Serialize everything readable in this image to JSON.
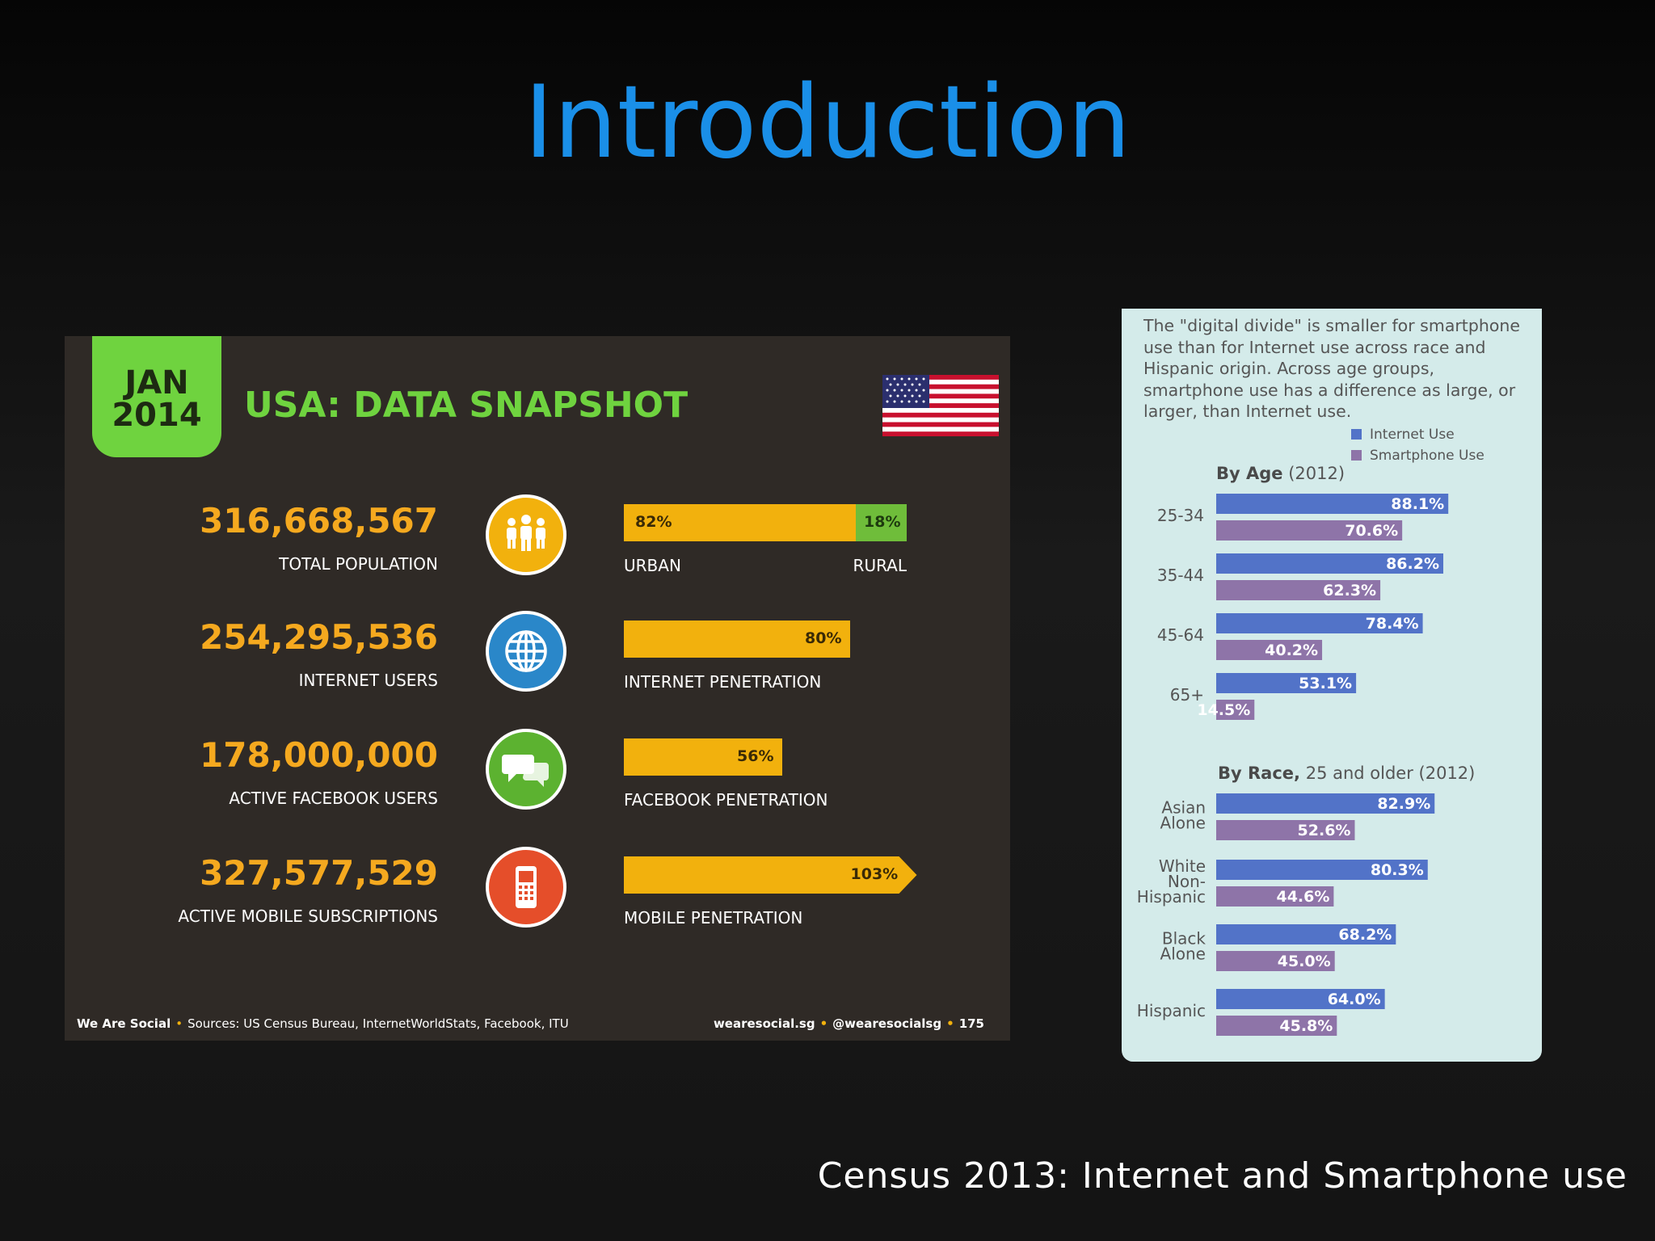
{
  "slide": {
    "title": "Introduction",
    "caption": "Census 2013: Internet and Smartphone use"
  },
  "snapshot": {
    "badge_month": "JAN",
    "badge_year": "2014",
    "title": "USA: DATA SNAPSHOT",
    "colors": {
      "green": "#6fd33f",
      "orange": "#f5a91f",
      "bar": "#f2b10d",
      "panel": "#2f2a26"
    },
    "rows": [
      {
        "value": "316,668,567",
        "label": "TOTAL POPULATION",
        "icon": "people-icon",
        "icon_color": "#f2b10d",
        "bar": {
          "pct": 82,
          "pct_label": "82%",
          "second_pct": 18,
          "second_label": "18%",
          "left_label": "URBAN",
          "right_label": "RURAL"
        }
      },
      {
        "value": "254,295,536",
        "label": "INTERNET USERS",
        "icon": "globe-icon",
        "icon_color": "#2a87c9",
        "bar": {
          "pct": 80,
          "pct_label": "80%",
          "left_label": "INTERNET PENETRATION"
        }
      },
      {
        "value": "178,000,000",
        "label": "ACTIVE FACEBOOK USERS",
        "icon": "chat-bubbles-icon",
        "icon_color": "#5cb230",
        "bar": {
          "pct": 56,
          "pct_label": "56%",
          "left_label": "FACEBOOK PENETRATION"
        }
      },
      {
        "value": "327,577,529",
        "label": "ACTIVE MOBILE SUBSCRIPTIONS",
        "icon": "mobile-phone-icon",
        "icon_color": "#e54e2a",
        "bar": {
          "pct": 103,
          "pct_label": "103%",
          "left_label": "MOBILE PENETRATION",
          "arrow": true
        }
      }
    ],
    "footer": {
      "brand": "We Are Social",
      "sources": "Sources: US Census Bureau, InternetWorldStats, Facebook, ITU",
      "site": "wearesocial.sg",
      "handle": "@wearesocialsg",
      "page": "175"
    }
  },
  "census": {
    "intro": "The \"digital divide\" is smaller for smartphone use than for Internet use across race and Hispanic origin.  Across age groups, smartphone use has a difference as large, or larger, than Internet use.",
    "legend": [
      {
        "name": "Internet Use",
        "color": "#5273c8"
      },
      {
        "name": "Smartphone Use",
        "color": "#8e74a8"
      }
    ],
    "age_title_bold": "By Age",
    "age_title_rest": " (2012)",
    "race_title_bold": "By Race,",
    "race_title_rest": " 25 and older (2012)"
  },
  "chart_data": {
    "type": "bar",
    "orientation": "horizontal",
    "groups": [
      {
        "title": "By Age (2012)",
        "categories": [
          "25-34",
          "35-44",
          "45-64",
          "65+"
        ],
        "series": [
          {
            "name": "Internet Use",
            "values": [
              88.1,
              86.2,
              78.4,
              53.1
            ],
            "labels": [
              "88.1%",
              "86.2%",
              "78.4%",
              "53.1%"
            ]
          },
          {
            "name": "Smartphone Use",
            "values": [
              70.6,
              62.3,
              40.2,
              14.5
            ],
            "labels": [
              "70.6%",
              "62.3%",
              "40.2%",
              "14.5%"
            ]
          }
        ]
      },
      {
        "title": "By Race, 25 and older (2012)",
        "categories": [
          "Asian Alone",
          "White Non-Hispanic",
          "Black Alone",
          "Hispanic"
        ],
        "category_lines": [
          [
            "Asian",
            "Alone"
          ],
          [
            "White",
            "Non-",
            "Hispanic"
          ],
          [
            "Black",
            "Alone"
          ],
          [
            "Hispanic"
          ]
        ],
        "series": [
          {
            "name": "Internet Use",
            "values": [
              82.9,
              80.3,
              68.2,
              64.0
            ],
            "labels": [
              "82.9%",
              "80.3%",
              "68.2%",
              "64.0%"
            ]
          },
          {
            "name": "Smartphone Use",
            "values": [
              52.6,
              44.6,
              45.0,
              45.8
            ],
            "labels": [
              "52.6%",
              "44.6%",
              "45.0%",
              "45.8%"
            ]
          }
        ]
      }
    ],
    "xlim": [
      0,
      100
    ],
    "legend_position": "top-right"
  }
}
